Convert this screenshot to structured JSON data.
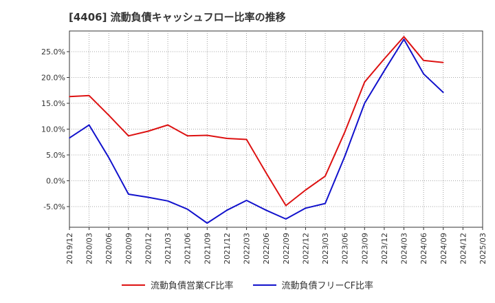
{
  "chart_data": {
    "type": "line",
    "title": "[4406]  流動負債キャッシュフロー比率の推移",
    "xlabel": "",
    "ylabel": "",
    "x": [
      "2019/12",
      "2020/03",
      "2020/06",
      "2020/09",
      "2020/12",
      "2021/03",
      "2021/06",
      "2021/09",
      "2021/12",
      "2022/03",
      "2022/06",
      "2022/09",
      "2022/12",
      "2023/03",
      "2023/06",
      "2023/09",
      "2023/12",
      "2024/03",
      "2024/06",
      "2024/09",
      "2024/12",
      "2025/03"
    ],
    "ylim": [
      -9,
      29
    ],
    "yticks": [
      -5,
      0,
      5,
      10,
      15,
      20,
      25
    ],
    "ytick_labels": [
      "-5.0%",
      "0.0%",
      "5.0%",
      "10.0%",
      "15.0%",
      "20.0%",
      "25.0%"
    ],
    "grid": true,
    "legend_position": "bottom",
    "series": [
      {
        "name": "流動負債営業CF比率",
        "color": "#dd1111",
        "values": [
          16.3,
          16.5,
          12.7,
          8.7,
          9.6,
          10.8,
          8.7,
          8.8,
          8.2,
          8.0,
          1.5,
          -4.8,
          -1.8,
          0.9,
          9.5,
          19.1,
          23.6,
          27.9,
          23.3,
          22.9,
          null,
          null
        ]
      },
      {
        "name": "流動負債フリーCF比率",
        "color": "#1111cc",
        "values": [
          8.3,
          10.8,
          4.5,
          -2.6,
          -3.2,
          -3.9,
          -5.5,
          -8.2,
          -5.7,
          -3.8,
          -5.7,
          -7.4,
          -5.3,
          -4.4,
          4.8,
          15.0,
          21.3,
          27.4,
          20.7,
          17.1,
          null,
          null
        ]
      }
    ]
  }
}
